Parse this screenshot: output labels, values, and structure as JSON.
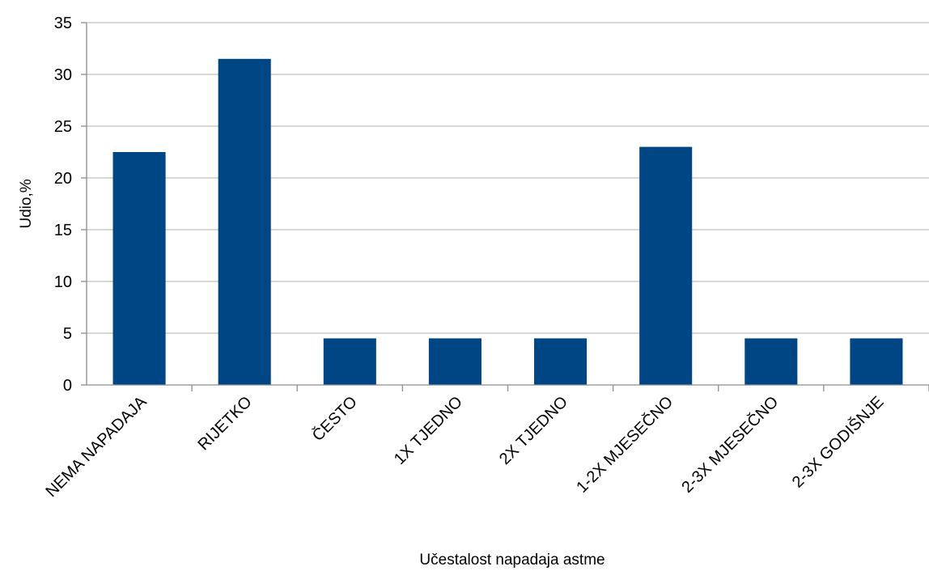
{
  "chart_data": {
    "type": "bar",
    "title": "",
    "xlabel": "Učestalost napadaja astme",
    "ylabel": "Udio,%",
    "categories": [
      "NEMA NAPADAJA",
      "RIJETKO",
      "ČESTO",
      "1X TJEDNO",
      "2X TJEDNO",
      "1-2X MJESEČNO",
      "2-3X MJESEČNO",
      "2-3X GODIŠNJE"
    ],
    "series": [
      {
        "values": [
          22.5,
          31.5,
          4.5,
          4.5,
          4.5,
          23,
          4.5,
          4.5
        ]
      }
    ],
    "ylim": [
      0,
      35
    ],
    "yticks": [
      "0",
      "5",
      "10",
      "15",
      "20",
      "25",
      "30",
      "35"
    ],
    "grid": true,
    "legend": "none",
    "bar_color": "#004685",
    "grid_color": "#bfbfbf",
    "axis_color": "#8c8c8c"
  }
}
